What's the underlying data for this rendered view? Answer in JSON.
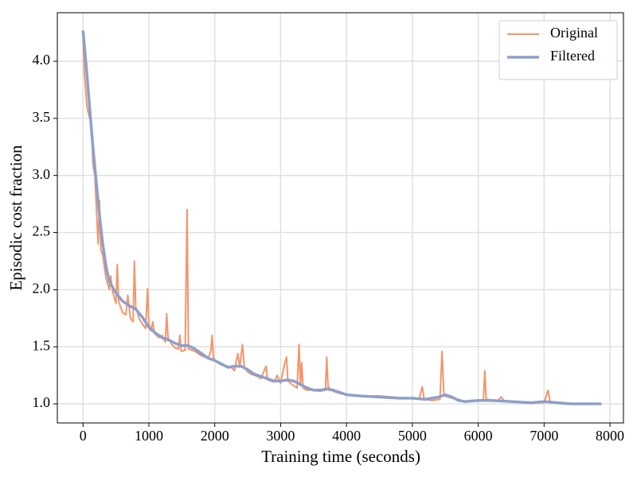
{
  "chart_data": {
    "type": "line",
    "xlabel": "Training time (seconds)",
    "ylabel": "Episodic cost fraction",
    "xlim": [
      -390,
      8205
    ],
    "ylim": [
      0.833,
      4.425
    ],
    "xticks": [
      0,
      1000,
      2000,
      3000,
      4000,
      5000,
      6000,
      7000,
      8000
    ],
    "yticks": [
      {
        "value": 1,
        "label": "1.0"
      },
      {
        "value": 1.5,
        "label": "1.5"
      },
      {
        "value": 2,
        "label": "2.0"
      },
      {
        "value": 2.5,
        "label": "2.5"
      },
      {
        "value": 3,
        "label": "3.0"
      },
      {
        "value": 3.5,
        "label": "3.5"
      },
      {
        "value": 4,
        "label": "4.0"
      }
    ],
    "grid": true,
    "legend": "upper-right",
    "series": [
      {
        "name": "Original",
        "color": "#f4956a",
        "width": 2,
        "x": [
          0,
          20,
          40,
          60,
          80,
          100,
          130,
          150,
          180,
          200,
          230,
          250,
          270,
          300,
          350,
          400,
          420,
          450,
          500,
          520,
          540,
          600,
          650,
          680,
          720,
          760,
          780,
          800,
          850,
          900,
          950,
          980,
          1000,
          1030,
          1060,
          1080,
          1150,
          1200,
          1250,
          1270,
          1290,
          1350,
          1400,
          1450,
          1470,
          1490,
          1550,
          1580,
          1600,
          1700,
          1800,
          1900,
          1940,
          1960,
          1980,
          2050,
          2100,
          2200,
          2250,
          2300,
          2350,
          2380,
          2420,
          2450,
          2500,
          2550,
          2600,
          2650,
          2700,
          2780,
          2800,
          2900,
          2950,
          3000,
          3060,
          3090,
          3110,
          3150,
          3250,
          3280,
          3300,
          3320,
          3340,
          3400,
          3500,
          3600,
          3680,
          3700,
          3720,
          3800,
          3900,
          4000,
          4200,
          4350,
          4500,
          4700,
          4900,
          5000,
          5100,
          5150,
          5180,
          5300,
          5420,
          5450,
          5480,
          5600,
          5700,
          5800,
          5900,
          6000,
          6080,
          6100,
          6120,
          6300,
          6350,
          6400,
          6600,
          6800,
          7000,
          7060,
          7090,
          7300,
          7500,
          7700,
          7870
        ],
        "values": [
          4.2,
          3.9,
          3.75,
          3.6,
          3.55,
          3.5,
          3.45,
          3.1,
          3.0,
          2.75,
          2.4,
          2.78,
          2.35,
          2.3,
          2.1,
          2.0,
          2.12,
          1.98,
          1.88,
          2.22,
          1.9,
          1.8,
          1.78,
          1.95,
          1.75,
          1.72,
          2.25,
          1.85,
          1.75,
          1.7,
          1.66,
          2.01,
          1.7,
          1.64,
          1.72,
          1.62,
          1.58,
          1.6,
          1.54,
          1.79,
          1.58,
          1.52,
          1.49,
          1.48,
          1.6,
          1.46,
          1.47,
          2.7,
          1.48,
          1.46,
          1.42,
          1.4,
          1.46,
          1.6,
          1.4,
          1.36,
          1.34,
          1.33,
          1.32,
          1.29,
          1.44,
          1.32,
          1.52,
          1.32,
          1.28,
          1.26,
          1.25,
          1.24,
          1.22,
          1.33,
          1.21,
          1.19,
          1.25,
          1.18,
          1.35,
          1.41,
          1.2,
          1.18,
          1.14,
          1.52,
          1.16,
          1.36,
          1.14,
          1.12,
          1.12,
          1.11,
          1.12,
          1.41,
          1.15,
          1.11,
          1.09,
          1.08,
          1.07,
          1.07,
          1.07,
          1.06,
          1.05,
          1.05,
          1.04,
          1.15,
          1.04,
          1.03,
          1.04,
          1.46,
          1.07,
          1.05,
          1.04,
          1.02,
          1.03,
          1.03,
          1.04,
          1.29,
          1.04,
          1.03,
          1.06,
          1.02,
          1.02,
          1.01,
          1.01,
          1.12,
          1.02,
          1.01,
          1.0,
          1.0,
          1.0
        ]
      },
      {
        "name": "Filtered",
        "color": "#8da0cb",
        "width": 3.5,
        "x": [
          0,
          50,
          100,
          150,
          200,
          250,
          300,
          350,
          400,
          500,
          600,
          700,
          800,
          900,
          1000,
          1100,
          1200,
          1300,
          1400,
          1500,
          1600,
          1700,
          1800,
          1900,
          2000,
          2100,
          2200,
          2300,
          2400,
          2500,
          2600,
          2700,
          2800,
          2900,
          3000,
          3100,
          3200,
          3300,
          3400,
          3500,
          3600,
          3700,
          3800,
          3900,
          4000,
          4200,
          4500,
          4800,
          5000,
          5200,
          5400,
          5500,
          5600,
          5700,
          5800,
          6000,
          6200,
          6500,
          6800,
          7000,
          7200,
          7400,
          7600,
          7870
        ],
        "values": [
          4.27,
          3.95,
          3.6,
          3.25,
          2.95,
          2.65,
          2.4,
          2.2,
          2.07,
          1.97,
          1.9,
          1.86,
          1.83,
          1.76,
          1.67,
          1.62,
          1.58,
          1.56,
          1.53,
          1.51,
          1.51,
          1.48,
          1.44,
          1.4,
          1.38,
          1.35,
          1.32,
          1.33,
          1.33,
          1.3,
          1.26,
          1.24,
          1.22,
          1.2,
          1.2,
          1.21,
          1.2,
          1.17,
          1.14,
          1.12,
          1.12,
          1.13,
          1.12,
          1.1,
          1.08,
          1.07,
          1.06,
          1.05,
          1.05,
          1.04,
          1.06,
          1.08,
          1.06,
          1.03,
          1.02,
          1.03,
          1.03,
          1.02,
          1.01,
          1.02,
          1.01,
          1.0,
          1.0,
          1.0
        ]
      }
    ]
  }
}
